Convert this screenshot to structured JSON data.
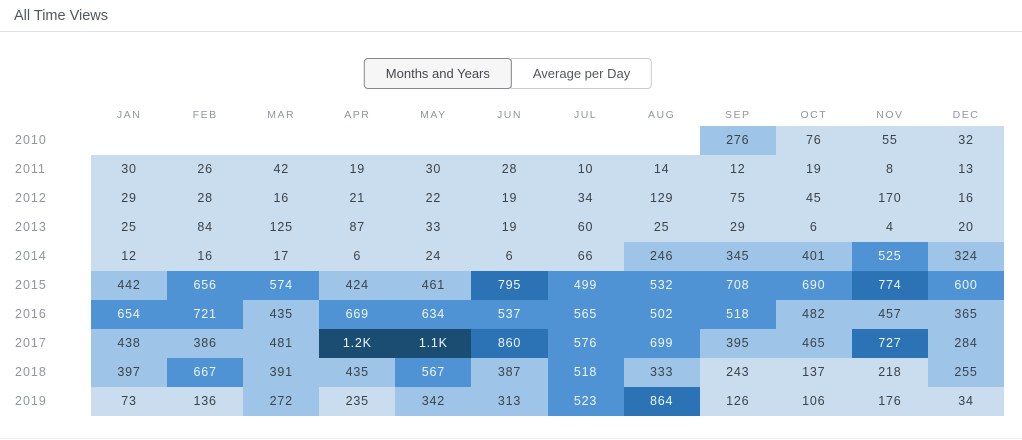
{
  "header": {
    "title": "All Time Views"
  },
  "toggle": {
    "options": [
      {
        "label": "Months and Years",
        "active": true
      },
      {
        "label": "Average per Day",
        "active": false
      }
    ]
  },
  "chart_data": {
    "type": "heatmap",
    "title": "All Time Views",
    "columns": [
      "JAN",
      "FEB",
      "MAR",
      "APR",
      "MAY",
      "JUN",
      "JUL",
      "AUG",
      "SEP",
      "OCT",
      "NOV",
      "DEC"
    ],
    "rows": [
      {
        "year": "2010",
        "values": [
          null,
          null,
          null,
          null,
          null,
          null,
          null,
          null,
          276,
          76,
          55,
          32
        ],
        "labels": [
          "",
          "",
          "",
          "",
          "",
          "",
          "",
          "",
          "276",
          "76",
          "55",
          "32"
        ]
      },
      {
        "year": "2011",
        "values": [
          30,
          26,
          42,
          19,
          30,
          28,
          10,
          14,
          12,
          19,
          8,
          13
        ],
        "labels": [
          "30",
          "26",
          "42",
          "19",
          "30",
          "28",
          "10",
          "14",
          "12",
          "19",
          "8",
          "13"
        ]
      },
      {
        "year": "2012",
        "values": [
          29,
          28,
          16,
          21,
          22,
          19,
          34,
          129,
          75,
          45,
          170,
          16
        ],
        "labels": [
          "29",
          "28",
          "16",
          "21",
          "22",
          "19",
          "34",
          "129",
          "75",
          "45",
          "170",
          "16"
        ]
      },
      {
        "year": "2013",
        "values": [
          25,
          84,
          125,
          87,
          33,
          19,
          60,
          25,
          29,
          6,
          4,
          20
        ],
        "labels": [
          "25",
          "84",
          "125",
          "87",
          "33",
          "19",
          "60",
          "25",
          "29",
          "6",
          "4",
          "20"
        ]
      },
      {
        "year": "2014",
        "values": [
          12,
          16,
          17,
          6,
          24,
          6,
          66,
          246,
          345,
          401,
          525,
          324
        ],
        "labels": [
          "12",
          "16",
          "17",
          "6",
          "24",
          "6",
          "66",
          "246",
          "345",
          "401",
          "525",
          "324"
        ]
      },
      {
        "year": "2015",
        "values": [
          442,
          656,
          574,
          424,
          461,
          795,
          499,
          532,
          708,
          690,
          774,
          600
        ],
        "labels": [
          "442",
          "656",
          "574",
          "424",
          "461",
          "795",
          "499",
          "532",
          "708",
          "690",
          "774",
          "600"
        ]
      },
      {
        "year": "2016",
        "values": [
          654,
          721,
          435,
          669,
          634,
          537,
          565,
          502,
          518,
          482,
          457,
          365
        ],
        "labels": [
          "654",
          "721",
          "435",
          "669",
          "634",
          "537",
          "565",
          "502",
          "518",
          "482",
          "457",
          "365"
        ]
      },
      {
        "year": "2017",
        "values": [
          438,
          386,
          481,
          1200,
          1100,
          860,
          576,
          699,
          395,
          465,
          727,
          284
        ],
        "labels": [
          "438",
          "386",
          "481",
          "1.2K",
          "1.1K",
          "860",
          "576",
          "699",
          "395",
          "465",
          "727",
          "284"
        ]
      },
      {
        "year": "2018",
        "values": [
          397,
          667,
          391,
          435,
          567,
          387,
          518,
          333,
          243,
          137,
          218,
          255
        ],
        "labels": [
          "397",
          "667",
          "391",
          "435",
          "567",
          "387",
          "518",
          "333",
          "243",
          "137",
          "218",
          "255"
        ]
      },
      {
        "year": "2019",
        "values": [
          73,
          136,
          272,
          235,
          342,
          313,
          523,
          864,
          126,
          106,
          176,
          34
        ],
        "labels": [
          "73",
          "136",
          "272",
          "235",
          "342",
          "313",
          "523",
          "864",
          "126",
          "106",
          "176",
          "34"
        ]
      }
    ],
    "color_scale": {
      "thresholds": [
        245,
        490,
        725,
        1000
      ],
      "colors": [
        "#c9ddef",
        "#9ec5e8",
        "#4f93d5",
        "#2b73b5",
        "#1b4d73"
      ],
      "empty": "#ffffff",
      "dark_text": "#3c434a",
      "light_text": "#eef5fb",
      "light_text_level": 2
    },
    "xlabel": "",
    "ylabel": "",
    "legend": "none",
    "grid": false
  }
}
